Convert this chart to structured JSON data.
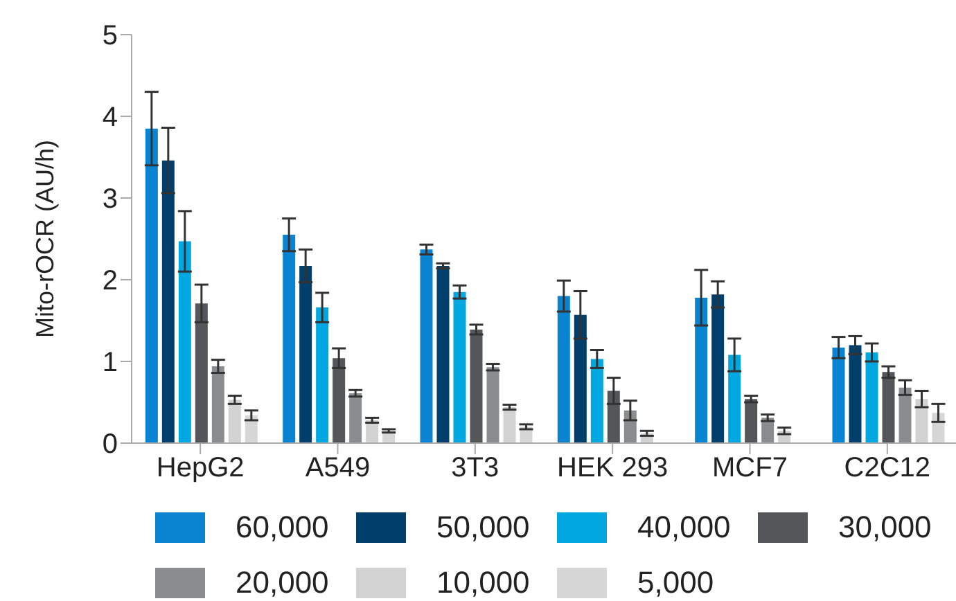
{
  "chart_data": {
    "type": "bar",
    "ylabel": "Mito-rOCR (AU/h)",
    "categories": [
      "HepG2",
      "A549",
      "3T3",
      "HEK 293",
      "MCF7",
      "C2C12"
    ],
    "ylim": [
      0,
      5
    ],
    "yticks": [
      0,
      1,
      2,
      3,
      4,
      5
    ],
    "grid": false,
    "legend": "bottom",
    "series": [
      {
        "name": "60,000",
        "color": "#0a84d0",
        "values": [
          3.85,
          2.55,
          2.37,
          1.8,
          1.78,
          1.17
        ],
        "errors": [
          0.45,
          0.2,
          0.06,
          0.19,
          0.34,
          0.13
        ]
      },
      {
        "name": "50,000",
        "color": "#003f6b",
        "values": [
          3.46,
          2.17,
          2.17,
          1.57,
          1.82,
          1.2
        ],
        "errors": [
          0.4,
          0.2,
          0.03,
          0.29,
          0.16,
          0.11
        ]
      },
      {
        "name": "40,000",
        "color": "#00a7e0",
        "values": [
          2.47,
          1.66,
          1.85,
          1.03,
          1.08,
          1.11
        ],
        "errors": [
          0.37,
          0.18,
          0.08,
          0.11,
          0.2,
          0.11
        ]
      },
      {
        "name": "30,000",
        "color": "#54565a",
        "values": [
          1.71,
          1.04,
          1.39,
          0.64,
          0.54,
          0.87
        ],
        "errors": [
          0.23,
          0.12,
          0.06,
          0.16,
          0.04,
          0.07
        ]
      },
      {
        "name": "20,000",
        "color": "#8a8c8e",
        "values": [
          0.94,
          0.61,
          0.93,
          0.4,
          0.31,
          0.68
        ],
        "errors": [
          0.08,
          0.04,
          0.04,
          0.12,
          0.04,
          0.09
        ]
      },
      {
        "name": "10,000",
        "color": "#d2d2d2",
        "values": [
          0.53,
          0.28,
          0.44,
          0.12,
          0.15,
          0.54
        ],
        "errors": [
          0.05,
          0.03,
          0.03,
          0.03,
          0.04,
          0.1
        ]
      },
      {
        "name": "5,000",
        "color": "#d6d6d6",
        "values": [
          0.34,
          0.15,
          0.2,
          null,
          null,
          0.37
        ],
        "errors": [
          0.06,
          0.02,
          0.03,
          null,
          null,
          0.11
        ]
      }
    ]
  }
}
